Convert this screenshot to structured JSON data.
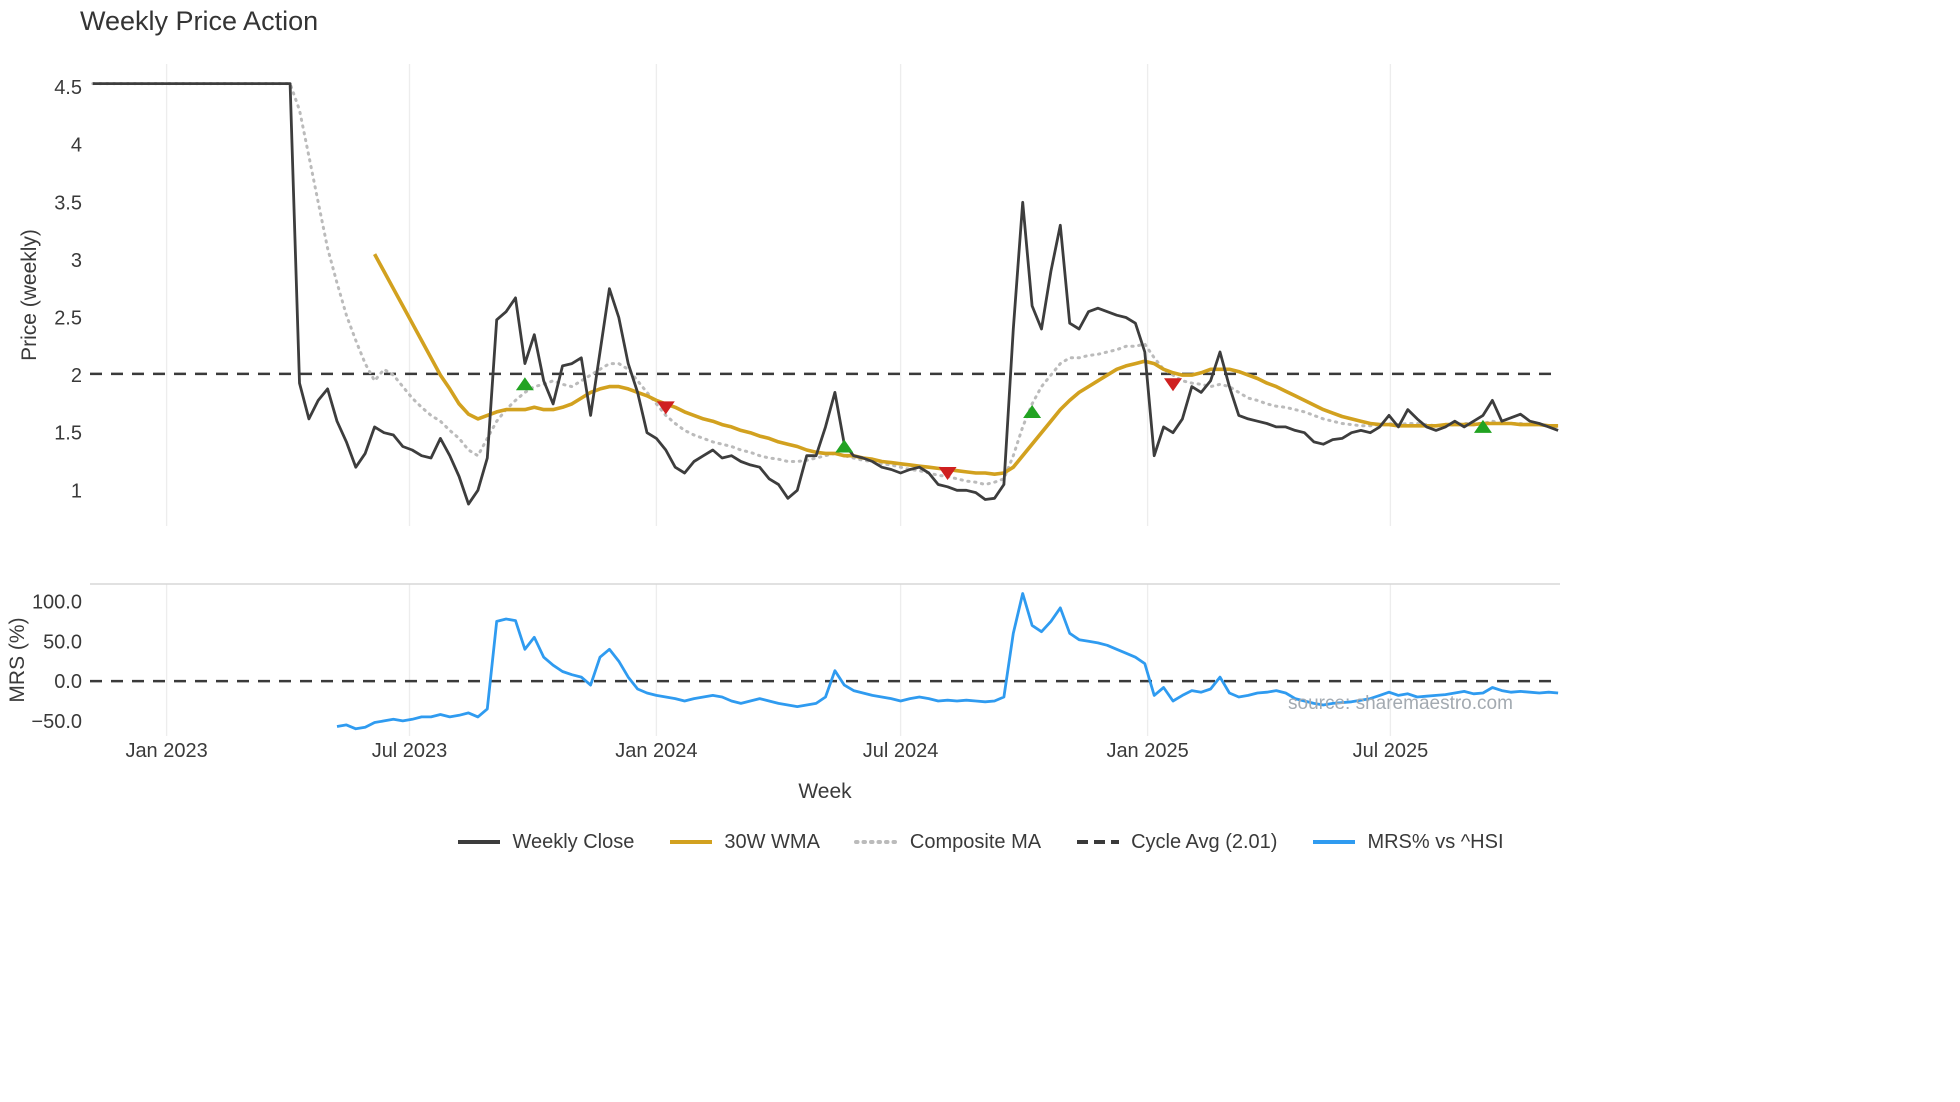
{
  "title": "Weekly Price Action",
  "watermark": "source: sharemaestro.com",
  "axes": {
    "xlabel": "Week",
    "price_ylabel": "Price (weekly)",
    "mrs_ylabel": "MRS (%)"
  },
  "legend": {
    "position": "bottom",
    "items": [
      {
        "label": "Weekly Close",
        "color": "#3d3d3d",
        "dash": "solid"
      },
      {
        "label": "30W WMA",
        "color": "#d2a11f",
        "dash": "solid"
      },
      {
        "label": "Composite MA",
        "color": "#bbbbbb",
        "dash": "dotted"
      },
      {
        "label": "Cycle Avg (2.01)",
        "color": "#3a3a3a",
        "dash": "dashed"
      },
      {
        "label": "MRS% vs ^HSI",
        "color": "#2f9bf0",
        "dash": "solid"
      }
    ]
  },
  "chart_data": [
    {
      "type": "line",
      "panel": "price",
      "title": "Weekly Price Action",
      "xlabel": "Week",
      "ylabel": "Price (weekly)",
      "x_unit": "week index, week 0 ≈ early Nov 2022, weekly spacing",
      "xlim": [
        -0.3,
        156.2
      ],
      "ylim": [
        0.69,
        4.7
      ],
      "grid": "vertical-light",
      "xticks": {
        "positions": [
          7.86,
          33.71,
          60.0,
          86.0,
          112.29,
          138.14
        ],
        "labels": [
          "Jan 2023",
          "Jul 2023",
          "Jan 2024",
          "Jul 2024",
          "Jan 2025",
          "Jul 2025"
        ]
      },
      "yticks": [
        1,
        1.5,
        2,
        2.5,
        3,
        3.5,
        4,
        4.5
      ],
      "ytick_labels": [
        "1",
        "1.5",
        "2",
        "2.5",
        "3",
        "3.5",
        "4",
        "4.5"
      ],
      "ref_line": {
        "label": "Cycle Avg (2.01)",
        "value": 2.01,
        "style": "dashed",
        "color": "#3a3a3a"
      },
      "series": [
        {
          "name": "Weekly Close",
          "color": "#3d3d3d",
          "style": "solid",
          "lw": 2.8,
          "start": 0,
          "values": [
            4.53,
            4.53,
            4.53,
            4.53,
            4.53,
            4.53,
            4.53,
            4.53,
            4.53,
            4.53,
            4.53,
            4.53,
            4.53,
            4.53,
            4.53,
            4.53,
            4.53,
            4.53,
            4.53,
            4.53,
            4.53,
            4.53,
            1.93,
            1.62,
            1.78,
            1.88,
            1.6,
            1.42,
            1.2,
            1.32,
            1.55,
            1.5,
            1.48,
            1.38,
            1.35,
            1.3,
            1.28,
            1.45,
            1.3,
            1.12,
            0.88,
            1.0,
            1.28,
            2.48,
            2.55,
            2.67,
            2.1,
            2.35,
            1.95,
            1.75,
            2.08,
            2.1,
            2.15,
            1.65,
            2.2,
            2.75,
            2.5,
            2.1,
            1.85,
            1.5,
            1.45,
            1.35,
            1.2,
            1.15,
            1.25,
            1.3,
            1.35,
            1.28,
            1.3,
            1.25,
            1.22,
            1.2,
            1.1,
            1.05,
            0.93,
            1.0,
            1.3,
            1.3,
            1.55,
            1.85,
            1.4,
            1.3,
            1.28,
            1.25,
            1.2,
            1.18,
            1.15,
            1.18,
            1.2,
            1.15,
            1.05,
            1.03,
            1.0,
            1.0,
            0.98,
            0.92,
            0.93,
            1.05,
            2.4,
            3.5,
            2.6,
            2.4,
            2.9,
            3.3,
            2.45,
            2.4,
            2.55,
            2.58,
            2.55,
            2.52,
            2.5,
            2.45,
            2.2,
            1.3,
            1.55,
            1.5,
            1.62,
            1.9,
            1.85,
            1.95,
            2.2,
            1.9,
            1.65,
            1.62,
            1.6,
            1.58,
            1.55,
            1.55,
            1.52,
            1.5,
            1.42,
            1.4,
            1.44,
            1.45,
            1.5,
            1.52,
            1.5,
            1.55,
            1.65,
            1.55,
            1.7,
            1.62,
            1.55,
            1.52,
            1.55,
            1.6,
            1.55,
            1.6,
            1.65,
            1.78,
            1.6,
            1.63,
            1.66,
            1.6,
            1.58,
            1.55,
            1.52
          ]
        },
        {
          "name": "30W WMA",
          "color": "#d2a11f",
          "style": "solid",
          "lw": 3.6,
          "start": 30,
          "values": [
            3.05,
            2.9,
            2.75,
            2.6,
            2.45,
            2.3,
            2.15,
            2.0,
            1.88,
            1.75,
            1.66,
            1.62,
            1.65,
            1.68,
            1.7,
            1.7,
            1.7,
            1.72,
            1.7,
            1.7,
            1.72,
            1.75,
            1.8,
            1.85,
            1.88,
            1.9,
            1.9,
            1.88,
            1.85,
            1.82,
            1.78,
            1.75,
            1.72,
            1.68,
            1.65,
            1.62,
            1.6,
            1.57,
            1.55,
            1.52,
            1.5,
            1.47,
            1.45,
            1.42,
            1.4,
            1.38,
            1.35,
            1.33,
            1.32,
            1.32,
            1.3,
            1.3,
            1.28,
            1.27,
            1.25,
            1.24,
            1.23,
            1.22,
            1.21,
            1.2,
            1.19,
            1.18,
            1.17,
            1.16,
            1.15,
            1.15,
            1.14,
            1.15,
            1.2,
            1.3,
            1.4,
            1.5,
            1.6,
            1.7,
            1.78,
            1.85,
            1.9,
            1.95,
            2.0,
            2.05,
            2.08,
            2.1,
            2.12,
            2.1,
            2.05,
            2.02,
            2.0,
            2.0,
            2.02,
            2.05,
            2.05,
            2.05,
            2.03,
            2.0,
            1.97,
            1.93,
            1.9,
            1.86,
            1.82,
            1.78,
            1.74,
            1.7,
            1.67,
            1.64,
            1.62,
            1.6,
            1.58,
            1.57,
            1.57,
            1.56,
            1.56,
            1.56,
            1.56,
            1.56,
            1.57,
            1.57,
            1.57,
            1.57,
            1.58,
            1.58,
            1.58,
            1.58,
            1.57,
            1.57,
            1.57,
            1.56,
            1.56
          ]
        },
        {
          "name": "Composite MA",
          "color": "#bbbbbb",
          "style": "dotted",
          "lw": 3.0,
          "start": 0,
          "values": [
            4.53,
            4.53,
            4.53,
            4.53,
            4.53,
            4.53,
            4.53,
            4.53,
            4.53,
            4.53,
            4.53,
            4.53,
            4.53,
            4.53,
            4.53,
            4.53,
            4.53,
            4.53,
            4.53,
            4.53,
            4.53,
            4.53,
            4.3,
            3.9,
            3.5,
            3.1,
            2.8,
            2.52,
            2.3,
            2.1,
            1.95,
            2.05,
            2.0,
            1.9,
            1.8,
            1.72,
            1.65,
            1.6,
            1.52,
            1.45,
            1.35,
            1.3,
            1.45,
            1.6,
            1.7,
            1.78,
            1.85,
            1.9,
            1.92,
            1.95,
            1.92,
            1.9,
            1.95,
            2.0,
            2.05,
            2.1,
            2.1,
            2.05,
            1.95,
            1.85,
            1.75,
            1.65,
            1.58,
            1.52,
            1.48,
            1.45,
            1.42,
            1.4,
            1.38,
            1.35,
            1.33,
            1.3,
            1.28,
            1.27,
            1.25,
            1.25,
            1.26,
            1.28,
            1.3,
            1.32,
            1.3,
            1.28,
            1.26,
            1.25,
            1.23,
            1.22,
            1.2,
            1.18,
            1.17,
            1.15,
            1.13,
            1.12,
            1.1,
            1.08,
            1.07,
            1.05,
            1.07,
            1.1,
            1.3,
            1.55,
            1.75,
            1.9,
            2.0,
            2.1,
            2.15,
            2.15,
            2.17,
            2.18,
            2.2,
            2.22,
            2.25,
            2.25,
            2.27,
            2.15,
            2.05,
            2.0,
            1.95,
            1.93,
            1.92,
            1.9,
            1.92,
            1.9,
            1.85,
            1.8,
            1.78,
            1.75,
            1.73,
            1.72,
            1.7,
            1.68,
            1.65,
            1.62,
            1.6,
            1.58,
            1.57,
            1.56,
            1.56,
            1.57,
            1.58,
            1.57,
            1.58,
            1.58,
            1.57,
            1.56,
            1.56,
            1.57,
            1.58,
            1.58,
            1.58,
            1.6,
            1.58,
            1.58,
            1.58,
            1.57,
            1.57,
            1.56,
            1.55
          ]
        }
      ],
      "markers": {
        "buy": {
          "shape": "triangle-up",
          "color": "#22a322",
          "points": [
            [
              46,
              1.92
            ],
            [
              80,
              1.38
            ],
            [
              100,
              1.68
            ],
            [
              148,
              1.55
            ]
          ]
        },
        "sell": {
          "shape": "triangle-down",
          "color": "#cf2020",
          "points": [
            [
              61,
              1.72
            ],
            [
              91,
              1.15
            ],
            [
              115,
              1.92
            ]
          ]
        }
      }
    },
    {
      "type": "line",
      "panel": "mrs",
      "ylabel": "MRS (%)",
      "xlim": [
        -0.3,
        156.2
      ],
      "ylim": [
        -69,
        122
      ],
      "grid": "vertical-light",
      "yticks": [
        -50,
        0,
        50,
        100
      ],
      "ytick_labels": [
        "−50.0",
        "0.0",
        "50.0",
        "100.0"
      ],
      "ref_line": {
        "label": "zero line",
        "value": 0,
        "style": "dashed",
        "color": "#3a3a3a"
      },
      "series": [
        {
          "name": "MRS% vs ^HSI",
          "color": "#2f9bf0",
          "style": "solid",
          "lw": 2.8,
          "start": 26,
          "values": [
            -57,
            -55,
            -60,
            -58,
            -52,
            -50,
            -48,
            -50,
            -48,
            -45,
            -45,
            -42,
            -45,
            -43,
            -40,
            -45,
            -35,
            75,
            78,
            76,
            40,
            55,
            30,
            20,
            12,
            8,
            5,
            -5,
            30,
            40,
            25,
            5,
            -10,
            -15,
            -18,
            -20,
            -22,
            -25,
            -22,
            -20,
            -18,
            -20,
            -25,
            -28,
            -25,
            -22,
            -25,
            -28,
            -30,
            -32,
            -30,
            -28,
            -20,
            13,
            -5,
            -12,
            -15,
            -18,
            -20,
            -22,
            -25,
            -22,
            -20,
            -22,
            -25,
            -24,
            -25,
            -24,
            -25,
            -26,
            -25,
            -20,
            60,
            110,
            70,
            62,
            75,
            92,
            60,
            52,
            50,
            48,
            45,
            40,
            35,
            30,
            22,
            -18,
            -8,
            -25,
            -18,
            -12,
            -14,
            -10,
            5,
            -15,
            -20,
            -18,
            -15,
            -14,
            -12,
            -15,
            -22,
            -25,
            -28,
            -30,
            -28,
            -27,
            -26,
            -24,
            -22,
            -18,
            -14,
            -18,
            -16,
            -20,
            -19,
            -18,
            -17,
            -15,
            -13,
            -16,
            -15,
            -8,
            -12,
            -14,
            -13,
            -14,
            -15,
            -14,
            -15
          ]
        }
      ]
    }
  ]
}
